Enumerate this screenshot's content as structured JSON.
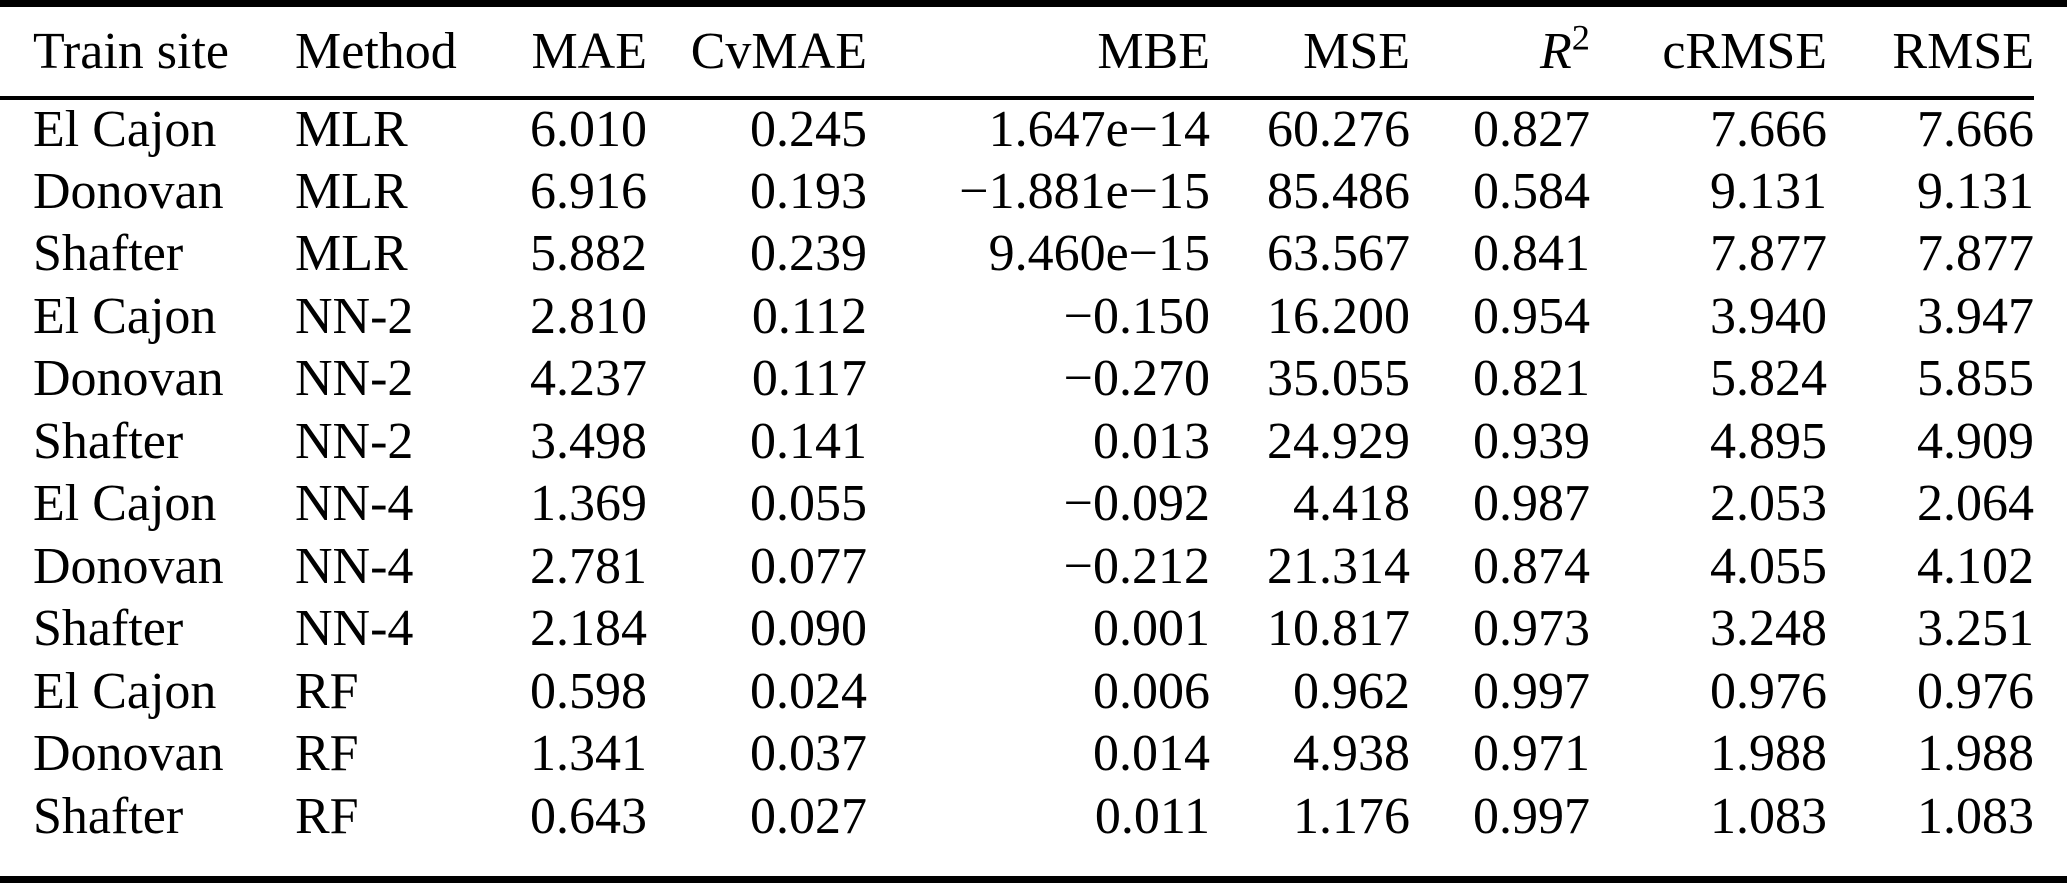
{
  "table": {
    "headers": [
      {
        "label": "Train site",
        "align": "left"
      },
      {
        "label": "Method",
        "align": "left"
      },
      {
        "label": "MAE",
        "align": "right"
      },
      {
        "label": "CvMAE",
        "align": "right"
      },
      {
        "label": "MBE",
        "align": "right"
      },
      {
        "label": "MSE",
        "align": "right"
      },
      {
        "label": "R",
        "sup": "2",
        "align": "right"
      },
      {
        "label": "cRMSE",
        "align": "right"
      },
      {
        "label": "RMSE",
        "align": "right"
      }
    ],
    "rows": [
      [
        "El Cajon",
        "MLR",
        "6.010",
        "0.245",
        "1.647e−14",
        "60.276",
        "0.827",
        "7.666",
        "7.666"
      ],
      [
        "Donovan",
        "MLR",
        "6.916",
        "0.193",
        "−1.881e−15",
        "85.486",
        "0.584",
        "9.131",
        "9.131"
      ],
      [
        "Shafter",
        "MLR",
        "5.882",
        "0.239",
        "9.460e−15",
        "63.567",
        "0.841",
        "7.877",
        "7.877"
      ],
      [
        "El Cajon",
        "NN-2",
        "2.810",
        "0.112",
        "−0.150",
        "16.200",
        "0.954",
        "3.940",
        "3.947"
      ],
      [
        "Donovan",
        "NN-2",
        "4.237",
        "0.117",
        "−0.270",
        "35.055",
        "0.821",
        "5.824",
        "5.855"
      ],
      [
        "Shafter",
        "NN-2",
        "3.498",
        "0.141",
        "0.013",
        "24.929",
        "0.939",
        "4.895",
        "4.909"
      ],
      [
        "El Cajon",
        "NN-4",
        "1.369",
        "0.055",
        "−0.092",
        "4.418",
        "0.987",
        "2.053",
        "2.064"
      ],
      [
        "Donovan",
        "NN-4",
        "2.781",
        "0.077",
        "−0.212",
        "21.314",
        "0.874",
        "4.055",
        "4.102"
      ],
      [
        "Shafter",
        "NN-4",
        "2.184",
        "0.090",
        "0.001",
        "10.817",
        "0.973",
        "3.248",
        "3.251"
      ],
      [
        "El Cajon",
        "RF",
        "0.598",
        "0.024",
        "0.006",
        "0.962",
        "0.997",
        "0.976",
        "0.976"
      ],
      [
        "Donovan",
        "RF",
        "1.341",
        "0.037",
        "0.014",
        "4.938",
        "0.971",
        "1.988",
        "1.988"
      ],
      [
        "Shafter",
        "RF",
        "0.643",
        "0.027",
        "0.011",
        "1.176",
        "0.997",
        "1.083",
        "1.083"
      ]
    ]
  },
  "chart_data": {
    "type": "table",
    "columns": [
      "Train site",
      "Method",
      "MAE",
      "CvMAE",
      "MBE",
      "MSE",
      "R2",
      "cRMSE",
      "RMSE"
    ],
    "rows": [
      [
        "El Cajon",
        "MLR",
        6.01,
        0.245,
        1.647e-14,
        60.276,
        0.827,
        7.666,
        7.666
      ],
      [
        "Donovan",
        "MLR",
        6.916,
        0.193,
        -1.881e-15,
        85.486,
        0.584,
        9.131,
        9.131
      ],
      [
        "Shafter",
        "MLR",
        5.882,
        0.239,
        9.46e-15,
        63.567,
        0.841,
        7.877,
        7.877
      ],
      [
        "El Cajon",
        "NN-2",
        2.81,
        0.112,
        -0.15,
        16.2,
        0.954,
        3.94,
        3.947
      ],
      [
        "Donovan",
        "NN-2",
        4.237,
        0.117,
        -0.27,
        35.055,
        0.821,
        5.824,
        5.855
      ],
      [
        "Shafter",
        "NN-2",
        3.498,
        0.141,
        0.013,
        24.929,
        0.939,
        4.895,
        4.909
      ],
      [
        "El Cajon",
        "NN-4",
        1.369,
        0.055,
        -0.092,
        4.418,
        0.987,
        2.053,
        2.064
      ],
      [
        "Donovan",
        "NN-4",
        2.781,
        0.077,
        -0.212,
        21.314,
        0.874,
        4.055,
        4.102
      ],
      [
        "Shafter",
        "NN-4",
        2.184,
        0.09,
        0.001,
        10.817,
        0.973,
        3.248,
        3.251
      ],
      [
        "El Cajon",
        "RF",
        0.598,
        0.024,
        0.006,
        0.962,
        0.997,
        0.976,
        0.976
      ],
      [
        "Donovan",
        "RF",
        1.341,
        0.037,
        0.014,
        4.938,
        0.971,
        1.988,
        1.988
      ],
      [
        "Shafter",
        "RF",
        0.643,
        0.027,
        0.011,
        1.176,
        0.997,
        1.083,
        1.083
      ]
    ]
  }
}
